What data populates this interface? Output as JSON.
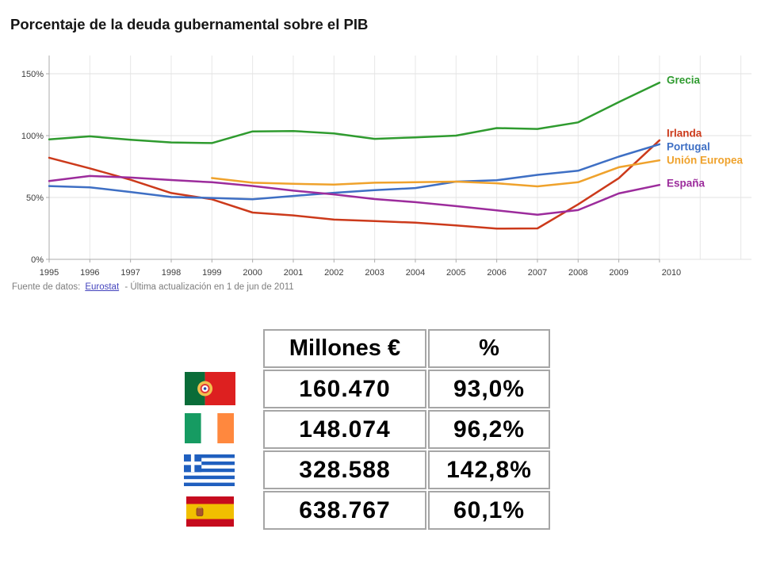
{
  "title": "Porcentaje de la deuda gubernamental sobre el PIB",
  "source": {
    "prefix": "Fuente de datos:",
    "link": "Eurostat",
    "suffix": "- Última actualización en 1 de jun de 2011"
  },
  "chart_data": {
    "type": "line",
    "x": [
      1995,
      1996,
      1997,
      1998,
      1999,
      2000,
      2001,
      2002,
      2003,
      2004,
      2005,
      2006,
      2007,
      2008,
      2009,
      2010
    ],
    "series": [
      {
        "name": "Grecia",
        "color": "#2f9b2f",
        "values": [
          97.0,
          99.4,
          96.6,
          94.5,
          94.0,
          103.4,
          103.7,
          101.7,
          97.4,
          98.6,
          100.0,
          106.1,
          105.4,
          110.7,
          127.1,
          142.8
        ]
      },
      {
        "name": "Irlanda",
        "color": "#cc3a1b",
        "values": [
          82.1,
          73.5,
          64.3,
          53.6,
          48.5,
          37.8,
          35.5,
          32.1,
          30.9,
          29.6,
          27.4,
          24.8,
          25.0,
          44.4,
          65.6,
          96.2
        ]
      },
      {
        "name": "Portugal",
        "color": "#3e6fc4",
        "values": [
          59.2,
          58.2,
          54.4,
          50.4,
          49.6,
          48.5,
          51.2,
          53.8,
          55.9,
          57.6,
          62.8,
          63.9,
          68.3,
          71.6,
          83.0,
          93.0
        ]
      },
      {
        "name": "Unión Europea",
        "color": "#efa22c",
        "values": [
          null,
          null,
          null,
          null,
          65.7,
          61.9,
          61.0,
          60.4,
          61.9,
          62.3,
          62.8,
          61.5,
          59.0,
          62.3,
          74.4,
          80.0
        ]
      },
      {
        "name": "España",
        "color": "#9c2c9c",
        "values": [
          63.3,
          67.4,
          66.1,
          64.1,
          62.3,
          59.3,
          55.5,
          52.5,
          48.7,
          46.2,
          43.0,
          39.6,
          36.1,
          39.8,
          53.3,
          60.1
        ]
      }
    ],
    "ylim": [
      0,
      150
    ],
    "yticks": [
      0,
      50,
      100,
      150
    ],
    "yticklabels": [
      "0%",
      "50%",
      "100%",
      "150%"
    ],
    "grid": true,
    "legend_position": "right",
    "title": "Porcentaje de la deuda gubernamental sobre el PIB",
    "xlabel": "",
    "ylabel": ""
  },
  "table": {
    "headers": [
      "Millones €",
      "%"
    ],
    "rows": [
      {
        "flag": "portugal-flag-icon",
        "millones": "160.470",
        "pct": "93,0%"
      },
      {
        "flag": "ireland-flag-icon",
        "millones": "148.074",
        "pct": "96,2%"
      },
      {
        "flag": "greece-flag-icon",
        "millones": "328.588",
        "pct": "142,8%"
      },
      {
        "flag": "spain-flag-icon",
        "millones": "638.767",
        "pct": "60,1%"
      }
    ]
  }
}
